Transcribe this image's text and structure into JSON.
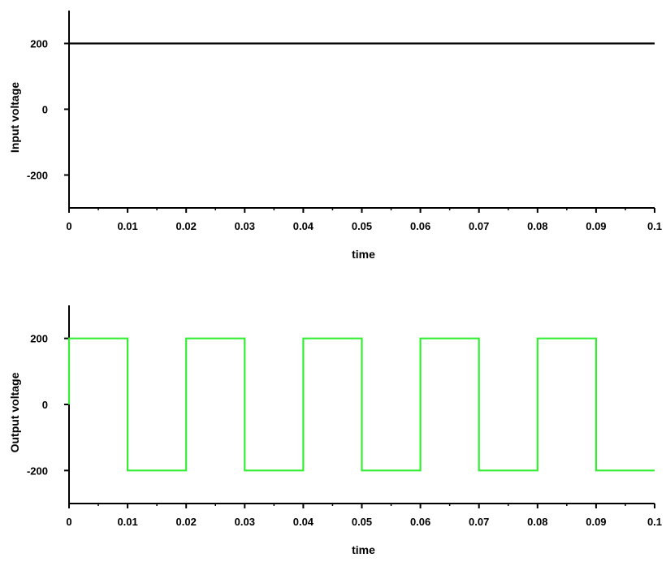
{
  "chart_data": [
    {
      "type": "line",
      "title": "",
      "xlabel": "time",
      "ylabel": "Input voltage",
      "xlim": [
        0,
        0.1
      ],
      "ylim": [
        -300,
        300
      ],
      "x_ticks": [
        "0",
        "0.01",
        "0.02",
        "0.03",
        "0.04",
        "0.05",
        "0.06",
        "0.07",
        "0.08",
        "0.09",
        "0.1"
      ],
      "y_ticks": [
        "-200",
        "0",
        "200"
      ],
      "grid": false,
      "series": [
        {
          "color": "#000000",
          "x": [
            0,
            0.1
          ],
          "y": [
            200,
            200
          ]
        }
      ]
    },
    {
      "type": "line",
      "title": "",
      "xlabel": "time",
      "ylabel": "Output voltage",
      "xlim": [
        0,
        0.1
      ],
      "ylim": [
        -300,
        300
      ],
      "x_ticks": [
        "0",
        "0.01",
        "0.02",
        "0.03",
        "0.04",
        "0.05",
        "0.06",
        "0.07",
        "0.08",
        "0.09",
        "0.1"
      ],
      "y_ticks": [
        "-200",
        "0",
        "200"
      ],
      "grid": false,
      "series": [
        {
          "color": "#33ee33",
          "x": [
            0,
            0,
            0.01,
            0.01,
            0.02,
            0.02,
            0.03,
            0.03,
            0.04,
            0.04,
            0.05,
            0.05,
            0.06,
            0.06,
            0.07,
            0.07,
            0.08,
            0.08,
            0.09,
            0.09,
            0.1
          ],
          "y": [
            0,
            200,
            200,
            -200,
            -200,
            200,
            200,
            -200,
            -200,
            200,
            200,
            -200,
            -200,
            200,
            200,
            -200,
            -200,
            200,
            200,
            -200,
            -200
          ]
        }
      ]
    }
  ]
}
